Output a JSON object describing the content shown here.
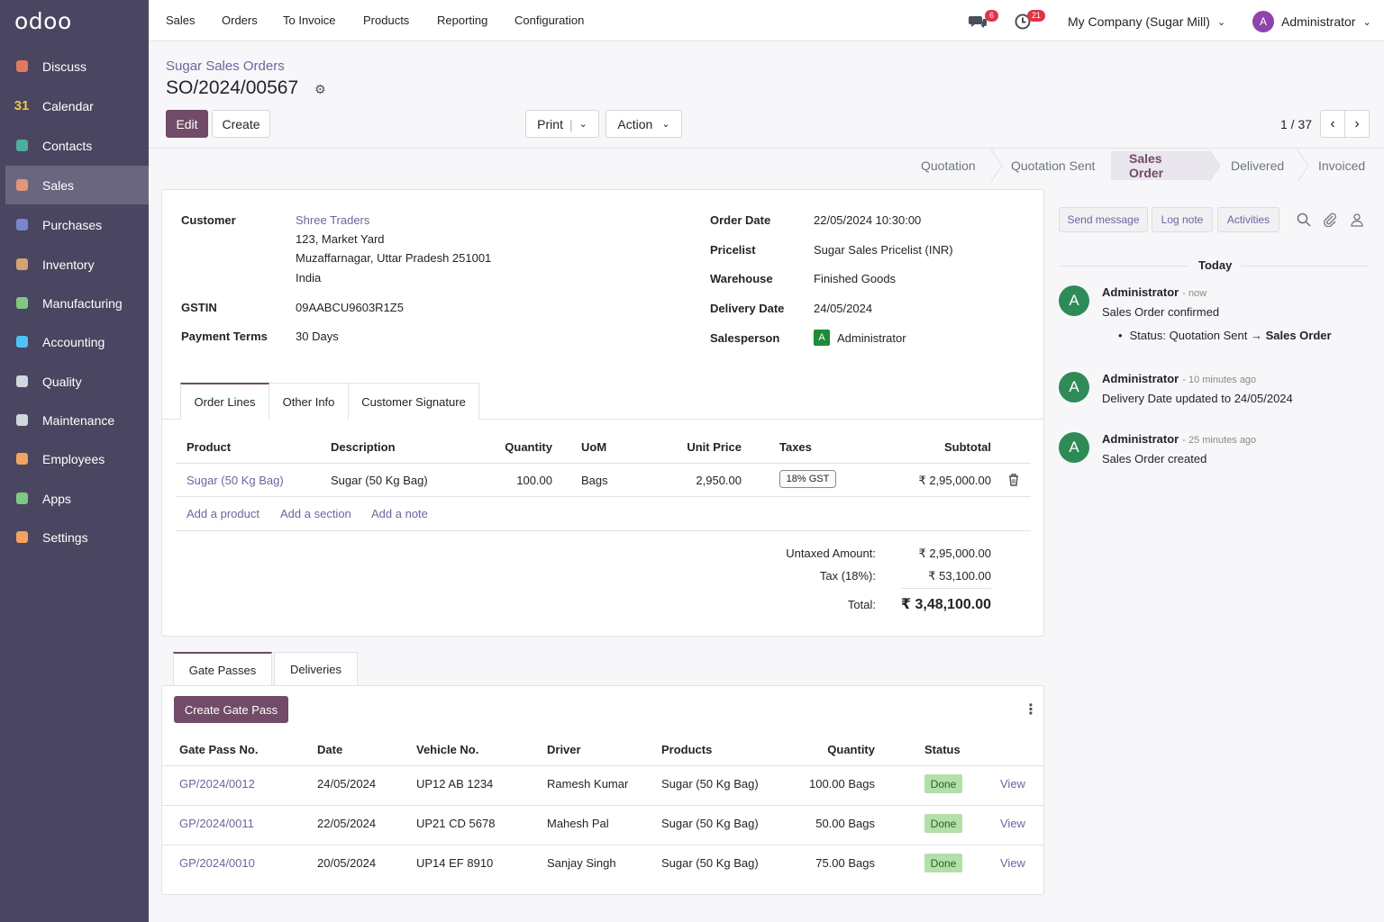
{
  "app": {
    "logo": "odoo"
  },
  "sidebar": {
    "items": [
      {
        "label": "Discuss",
        "icon": "discuss-icon",
        "color": "#e07a5f"
      },
      {
        "label": "Calendar",
        "icon": "calendar-icon",
        "glyph": "31",
        "color": "#f2c14e"
      },
      {
        "label": "Contacts",
        "icon": "contacts-icon",
        "color": "#4caf9e"
      },
      {
        "label": "Sales",
        "icon": "sales-icon",
        "color": "#e29578"
      },
      {
        "label": "Purchases",
        "icon": "purchases-icon",
        "color": "#7986cb"
      },
      {
        "label": "Inventory",
        "icon": "inventory-icon",
        "color": "#d4a373"
      },
      {
        "label": "Manufacturing",
        "icon": "manufacturing-icon",
        "color": "#81c784"
      },
      {
        "label": "Accounting",
        "icon": "accounting-icon",
        "color": "#4fc3f7"
      },
      {
        "label": "Quality",
        "icon": "quality-icon",
        "color": "#cfd8dc"
      },
      {
        "label": "Maintenance",
        "icon": "maintenance-icon",
        "color": "#cfd8dc"
      },
      {
        "label": "Employees",
        "icon": "employees-icon",
        "color": "#f4a261"
      },
      {
        "label": "Apps",
        "icon": "apps-icon",
        "color": "#81c784"
      },
      {
        "label": "Settings",
        "icon": "settings-icon",
        "color": "#f4a261"
      }
    ]
  },
  "topnav": {
    "items": [
      "Sales",
      "Orders",
      "To Invoice",
      "Products",
      "Reporting",
      "Configuration"
    ],
    "messages_count": "6",
    "activities_count": "21",
    "company": "My Company (Sugar Mill)",
    "user": "Administrator",
    "user_initial": "A"
  },
  "control": {
    "breadcrumb": "Sugar Sales Orders",
    "title": "SO/2024/00567",
    "edit_label": "Edit",
    "create_label": "Create",
    "print_label": "Print",
    "action_label": "Action",
    "pager": "1 / 37"
  },
  "stages": [
    "Quotation",
    "Quotation Sent",
    "Sales Order",
    "Delivered",
    "Invoiced"
  ],
  "form": {
    "customer_label": "Customer",
    "customer_name": "Shree Traders",
    "address1": "123, Market Yard",
    "address2": "Muzaffarnagar, Uttar Pradesh 251001",
    "country": "India",
    "gstin_label": "GSTIN",
    "gstin": "09AABCU9603R1Z5",
    "payment_terms_label": "Payment Terms",
    "payment_terms": "30 Days",
    "order_date_label": "Order Date",
    "order_date": "22/05/2024 10:30:00",
    "pricelist_label": "Pricelist",
    "pricelist": "Sugar Sales Pricelist (INR)",
    "warehouse_label": "Warehouse",
    "warehouse": "Finished Goods",
    "delivery_date_label": "Delivery Date",
    "delivery_date": "24/05/2024",
    "salesperson_label": "Salesperson",
    "salesperson": "Administrator",
    "salesperson_initial": "A"
  },
  "form_tabs": [
    "Order Lines",
    "Other Info",
    "Customer Signature"
  ],
  "order_lines": {
    "headers": [
      "Product",
      "Description",
      "Quantity",
      "UoM",
      "Unit Price",
      "Taxes",
      "Subtotal"
    ],
    "rows": [
      {
        "product": "Sugar (50 Kg Bag)",
        "description": "Sugar (50 Kg Bag)",
        "quantity": "100.00",
        "uom": "Bags",
        "unit_price": "2,950.00",
        "taxes": "18% GST",
        "subtotal": "₹ 2,95,000.00"
      }
    ],
    "add_product": "Add a product",
    "add_section": "Add a section",
    "add_note": "Add a note"
  },
  "totals": {
    "untaxed_label": "Untaxed Amount:",
    "untaxed": "₹ 2,95,000.00",
    "tax_label": "Tax (18%):",
    "tax": "₹ 53,100.00",
    "total_label": "Total:",
    "total": "₹ 3,48,100.00"
  },
  "gate": {
    "tabs": [
      "Gate Passes",
      "Deliveries"
    ],
    "create_label": "Create Gate Pass",
    "headers": [
      "Gate Pass No.",
      "Date",
      "Vehicle No.",
      "Driver",
      "Products",
      "Quantity",
      "Status"
    ],
    "rows": [
      {
        "no": "GP/2024/0012",
        "date": "24/05/2024",
        "vehicle": "UP12 AB 1234",
        "driver": "Ramesh Kumar",
        "product": "Sugar (50 Kg Bag)",
        "qty": "100.00 Bags",
        "status": "Done",
        "action": "View"
      },
      {
        "no": "GP/2024/0011",
        "date": "22/05/2024",
        "vehicle": "UP21 CD 5678",
        "driver": "Mahesh Pal",
        "product": "Sugar (50 Kg Bag)",
        "qty": "50.00 Bags",
        "status": "Done",
        "action": "View"
      },
      {
        "no": "GP/2024/0010",
        "date": "20/05/2024",
        "vehicle": "UP14 EF 8910",
        "driver": "Sanjay Singh",
        "product": "Sugar (50 Kg Bag)",
        "qty": "75.00 Bags",
        "status": "Done",
        "action": "View"
      }
    ]
  },
  "chatter": {
    "send_message": "Send message",
    "log_note": "Log note",
    "activities": "Activities",
    "today": "Today",
    "messages": [
      {
        "author": "Administrator",
        "time": "- now",
        "body": "Sales Order confirmed",
        "tracking_prefix": "Status: Quotation Sent → ",
        "tracking_value": "Sales Order"
      },
      {
        "author": "Administrator",
        "time": "- 10 minutes ago",
        "body": "Delivery Date updated to 24/05/2024"
      },
      {
        "author": "Administrator",
        "time": "- 25 minutes ago",
        "body": "Sales Order created"
      }
    ],
    "avatar_initial": "A"
  }
}
